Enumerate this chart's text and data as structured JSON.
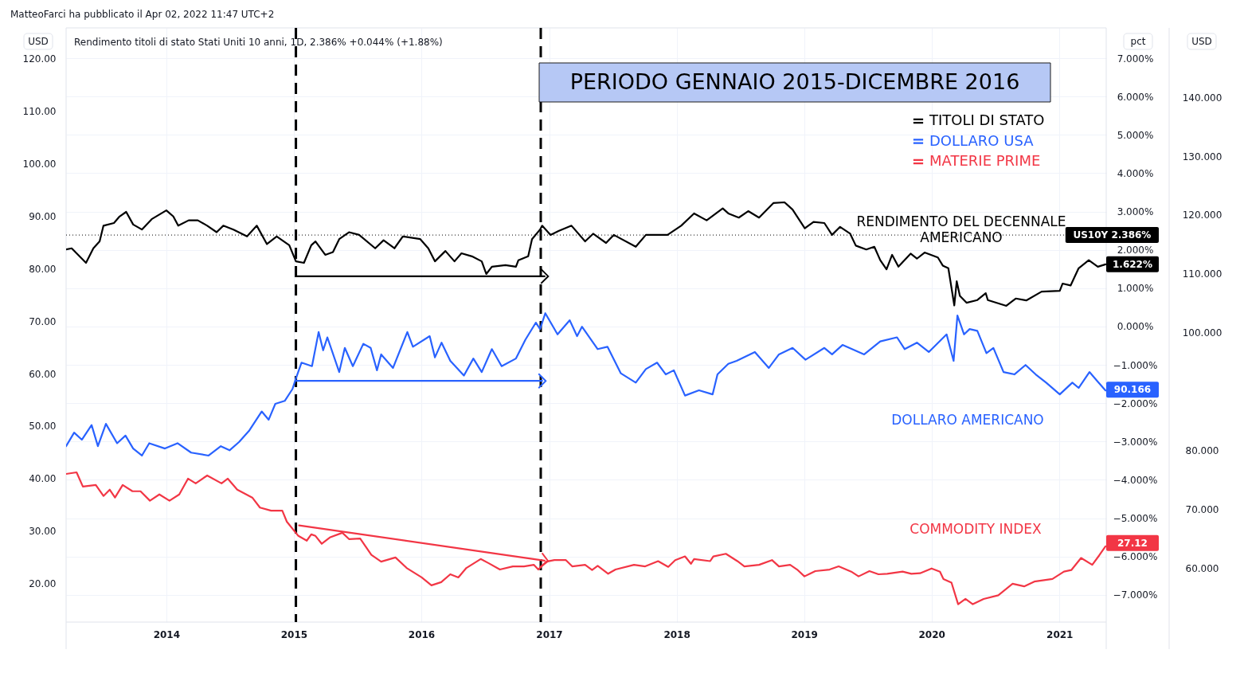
{
  "chart_data": {
    "type": "line",
    "title": "PERIODO GENNAIO 2015-DICEMBRE 2016",
    "subtitle": "Rendimento titoli di stato Stati Uniti 10 anni, 1D, 2.386% +0.044% (+1.88%)",
    "ylabel": "USD",
    "y2label": "pct",
    "y3label": "USD",
    "xlim": [
      "2013-03-20",
      "2021-05-15"
    ],
    "xticks": [
      "2014",
      "2015",
      "2016",
      "2017",
      "2018",
      "2019",
      "2020",
      "2021"
    ],
    "ylim": [
      12.7,
      125.8
    ],
    "yticks": [
      {
        "value": 120,
        "label": "120.00"
      },
      {
        "value": 110,
        "label": "110.00"
      },
      {
        "value": 100,
        "label": "100.00"
      },
      {
        "value": 90,
        "label": "90.00"
      },
      {
        "value": 80,
        "label": "80.00"
      },
      {
        "value": 70,
        "label": "70.00"
      },
      {
        "value": 60,
        "label": "60.00"
      },
      {
        "value": 50,
        "label": "50.00"
      },
      {
        "value": 40,
        "label": "40.00"
      },
      {
        "value": 30,
        "label": "30.00"
      },
      {
        "value": 20,
        "label": "20.00"
      }
    ],
    "y2lim": [
      -7.71,
      7.79
    ],
    "y2ticks": [
      {
        "value": 7,
        "label": "7.000%"
      },
      {
        "value": 6,
        "label": "6.000%"
      },
      {
        "value": 5,
        "label": "5.000%"
      },
      {
        "value": 4,
        "label": "4.000%"
      },
      {
        "value": 3,
        "label": "3.000%"
      },
      {
        "value": 2,
        "label": "2.000%"
      },
      {
        "value": 1,
        "label": "1.000%"
      },
      {
        "value": 0,
        "label": "0.000%"
      },
      {
        "value": -1,
        "label": "−1.000%"
      },
      {
        "value": -2,
        "label": "−2.000%"
      },
      {
        "value": -3,
        "label": "−3.000%"
      },
      {
        "value": -4,
        "label": "−4.000%"
      },
      {
        "value": -5,
        "label": "−5.000%"
      },
      {
        "value": -6,
        "label": "−6.000%"
      },
      {
        "value": -7,
        "label": "−7.000%"
      }
    ],
    "y3lim": [
      50.8,
      151.8
    ],
    "y3ticks": [
      {
        "value": 140,
        "label": "140.000"
      },
      {
        "value": 130,
        "label": "130.000"
      },
      {
        "value": 120,
        "label": "120.000"
      },
      {
        "value": 110,
        "label": "110.000"
      },
      {
        "value": 100,
        "label": "100.000"
      },
      {
        "value": 80,
        "label": "80.000"
      },
      {
        "value": 70,
        "label": "70.000"
      },
      {
        "value": 60,
        "label": "60.000"
      }
    ],
    "grid": true,
    "legend": "top right",
    "series": [
      {
        "name": "TITOLI DI STATO",
        "color": "#000000",
        "axis": "y2",
        "x": [
          "2013-03-20",
          "2013-04-05",
          "2013-05-16",
          "2013-06-06",
          "2013-06-24",
          "2013-07-05",
          "2013-08-04",
          "2013-08-20",
          "2013-09-08",
          "2013-09-28",
          "2013-10-23",
          "2013-11-20",
          "2014-01-01",
          "2014-01-21",
          "2014-02-04",
          "2014-03-06",
          "2014-04-01",
          "2014-04-28",
          "2014-05-25",
          "2014-06-13",
          "2014-07-12",
          "2014-08-20",
          "2014-09-17",
          "2014-10-16",
          "2014-11-13",
          "2014-12-19",
          "2015-01-07",
          "2015-01-30",
          "2015-02-20",
          "2015-03-04",
          "2015-04-01",
          "2015-04-23",
          "2015-05-11",
          "2015-06-08",
          "2015-07-07",
          "2015-08-22",
          "2015-09-15",
          "2015-10-16",
          "2015-11-09",
          "2015-12-29",
          "2016-01-21",
          "2016-02-09",
          "2016-03-10",
          "2016-04-05",
          "2016-04-25",
          "2016-05-25",
          "2016-06-22",
          "2016-07-05",
          "2016-07-21",
          "2016-08-29",
          "2016-09-28",
          "2016-10-05",
          "2016-11-02",
          "2016-11-13",
          "2016-12-06",
          "2016-12-12",
          "2017-01-05",
          "2017-01-28",
          "2017-03-06",
          "2017-04-14",
          "2017-05-07",
          "2017-06-13",
          "2017-07-05",
          "2017-09-06",
          "2017-10-05",
          "2017-12-06",
          "2018-01-14",
          "2018-02-20",
          "2018-03-28",
          "2018-05-13",
          "2018-05-29",
          "2018-06-28",
          "2018-07-25",
          "2018-08-25",
          "2018-10-05",
          "2018-11-06",
          "2018-11-29",
          "2019-01-03",
          "2019-01-28",
          "2019-02-28",
          "2019-03-22",
          "2019-04-14",
          "2019-05-13",
          "2019-05-29",
          "2019-06-28",
          "2019-07-21",
          "2019-08-07",
          "2019-08-25",
          "2019-09-10",
          "2019-09-28",
          "2019-11-02",
          "2019-11-20",
          "2019-12-12",
          "2020-01-19",
          "2020-02-02",
          "2020-02-18",
          "2020-03-06",
          "2020-03-13",
          "2020-03-22",
          "2020-04-10",
          "2020-05-11",
          "2020-06-04",
          "2020-06-10",
          "2020-08-02",
          "2020-08-29",
          "2020-09-28",
          "2020-11-11",
          "2021-01-02",
          "2021-01-10",
          "2021-02-02",
          "2021-02-25",
          "2021-03-26",
          "2021-04-21",
          "2021-05-13"
        ],
        "values": [
          2.01,
          2.04,
          1.66,
          2.04,
          2.22,
          2.63,
          2.7,
          2.87,
          2.99,
          2.66,
          2.53,
          2.8,
          3.03,
          2.87,
          2.63,
          2.77,
          2.77,
          2.63,
          2.46,
          2.63,
          2.53,
          2.35,
          2.63,
          2.15,
          2.35,
          2.12,
          1.7,
          1.66,
          2.12,
          2.22,
          1.87,
          1.94,
          2.28,
          2.46,
          2.39,
          2.04,
          2.25,
          2.04,
          2.35,
          2.28,
          2.04,
          1.7,
          1.97,
          1.7,
          1.91,
          1.83,
          1.7,
          1.37,
          1.56,
          1.6,
          1.56,
          1.73,
          1.83,
          2.28,
          2.53,
          2.63,
          2.39,
          2.49,
          2.63,
          2.22,
          2.42,
          2.18,
          2.39,
          2.08,
          2.39,
          2.39,
          2.63,
          2.95,
          2.77,
          3.08,
          2.95,
          2.84,
          3.01,
          2.84,
          3.22,
          3.24,
          3.05,
          2.56,
          2.73,
          2.7,
          2.39,
          2.6,
          2.42,
          2.11,
          2.01,
          2.08,
          1.73,
          1.49,
          1.87,
          1.56,
          1.9,
          1.77,
          1.93,
          1.8,
          1.59,
          1.52,
          0.55,
          1.18,
          0.8,
          0.62,
          0.69,
          0.87,
          0.69,
          0.54,
          0.73,
          0.68,
          0.91,
          0.93,
          1.12,
          1.07,
          1.52,
          1.73,
          1.56,
          1.622
        ],
        "value_labels": [
          null,
          null,
          null,
          null,
          null,
          null,
          null,
          null,
          null,
          null,
          null,
          null,
          null,
          null,
          null,
          null,
          null,
          null,
          null,
          null,
          null,
          null,
          null,
          null,
          null,
          null,
          null,
          null,
          null,
          null,
          null,
          null,
          null,
          null,
          null,
          null,
          null,
          null,
          null,
          null,
          null,
          null,
          null,
          null,
          null,
          null,
          null,
          null,
          null,
          null,
          null,
          null,
          null,
          null,
          null,
          null,
          null,
          null,
          null,
          null,
          null,
          null,
          null,
          null,
          null,
          null,
          null,
          null,
          null,
          null,
          null,
          null,
          null,
          null,
          null,
          null,
          null,
          null,
          null,
          null,
          null,
          null,
          null,
          null,
          null,
          null,
          null,
          null,
          null,
          null,
          null,
          null,
          null,
          null,
          null,
          null,
          null,
          null,
          null,
          null,
          null,
          null,
          null,
          null,
          null,
          null,
          null,
          null,
          null,
          null,
          null,
          null,
          null,
          "1.622%"
        ]
      },
      {
        "name": "DOLLARO USA",
        "color": "#2962ff",
        "axis": "y3",
        "x": [
          "2013-03-20",
          "2013-04-12",
          "2013-05-04",
          "2013-06-01",
          "2013-06-19",
          "2013-07-12",
          "2013-08-13",
          "2013-09-06",
          "2013-09-28",
          "2013-10-23",
          "2013-11-13",
          "2013-12-28",
          "2014-02-02",
          "2014-03-13",
          "2014-05-02",
          "2014-06-06",
          "2014-07-01",
          "2014-07-28",
          "2014-08-27",
          "2014-10-01",
          "2014-10-21",
          "2014-11-09",
          "2014-12-06",
          "2014-12-28",
          "2015-01-07",
          "2015-01-23",
          "2015-02-22",
          "2015-03-13",
          "2015-03-26",
          "2015-04-07",
          "2015-05-11",
          "2015-05-27",
          "2015-06-19",
          "2015-07-19",
          "2015-08-09",
          "2015-08-27",
          "2015-09-08",
          "2015-10-12",
          "2015-11-22",
          "2015-12-08",
          "2016-01-25",
          "2016-02-09",
          "2016-02-28",
          "2016-03-24",
          "2016-05-02",
          "2016-05-29",
          "2016-06-22",
          "2016-07-21",
          "2016-08-18",
          "2016-09-28",
          "2016-10-25",
          "2016-11-24",
          "2016-12-06",
          "2016-12-21",
          "2017-01-25",
          "2017-03-01",
          "2017-03-22",
          "2017-04-05",
          "2017-05-20",
          "2017-06-17",
          "2017-07-25",
          "2017-09-06",
          "2017-10-05",
          "2017-11-06",
          "2017-12-01",
          "2017-12-24",
          "2018-01-25",
          "2018-03-06",
          "2018-04-14",
          "2018-04-28",
          "2018-05-29",
          "2018-06-22",
          "2018-08-13",
          "2018-09-22",
          "2018-10-21",
          "2018-11-29",
          "2019-01-05",
          "2019-02-28",
          "2019-03-22",
          "2019-04-21",
          "2019-06-22",
          "2019-08-07",
          "2019-09-24",
          "2019-10-16",
          "2019-11-20",
          "2019-12-24",
          "2020-02-13",
          "2020-03-04",
          "2020-03-15",
          "2020-04-03",
          "2020-04-19",
          "2020-05-11",
          "2020-06-06",
          "2020-06-26",
          "2020-07-25",
          "2020-08-25",
          "2020-09-26",
          "2020-10-25",
          "2020-11-24",
          "2021-01-02",
          "2021-02-07",
          "2021-02-25",
          "2021-03-28",
          "2021-04-19",
          "2021-05-13"
        ],
        "values": [
          80.7,
          83.0,
          81.8,
          84.3,
          80.7,
          84.5,
          81.2,
          82.5,
          80.3,
          79.1,
          81.2,
          80.3,
          81.2,
          79.6,
          79.1,
          80.7,
          80.0,
          81.4,
          83.4,
          86.6,
          85.2,
          87.9,
          88.4,
          90.4,
          92.2,
          94.9,
          94.3,
          100.1,
          97.0,
          99.2,
          93.3,
          97.4,
          94.3,
          98.1,
          97.4,
          93.6,
          96.3,
          94.0,
          100.1,
          97.6,
          99.4,
          95.8,
          98.3,
          95.2,
          92.7,
          95.6,
          93.3,
          97.2,
          94.3,
          95.6,
          98.8,
          101.7,
          100.6,
          103.3,
          99.7,
          102.1,
          99.4,
          101.0,
          97.2,
          97.6,
          93.1,
          91.5,
          93.8,
          94.9,
          92.9,
          93.6,
          89.3,
          90.2,
          89.5,
          92.9,
          94.7,
          95.2,
          96.7,
          94.0,
          96.3,
          97.4,
          95.4,
          97.4,
          96.3,
          97.9,
          96.3,
          98.5,
          99.2,
          97.2,
          98.3,
          96.7,
          99.7,
          95.2,
          102.9,
          99.7,
          100.6,
          100.3,
          96.5,
          97.4,
          93.3,
          92.9,
          94.5,
          92.9,
          91.5,
          89.5,
          91.5,
          90.6,
          93.3,
          91.8,
          90.166
        ],
        "value_labels": [
          null,
          null,
          null,
          null,
          null,
          null,
          null,
          null,
          null,
          null,
          null,
          null,
          null,
          null,
          null,
          null,
          null,
          null,
          null,
          null,
          null,
          null,
          null,
          null,
          null,
          null,
          null,
          null,
          null,
          null,
          null,
          null,
          null,
          null,
          null,
          null,
          null,
          null,
          null,
          null,
          null,
          null,
          null,
          null,
          null,
          null,
          null,
          null,
          null,
          null,
          null,
          null,
          null,
          null,
          null,
          null,
          null,
          null,
          null,
          null,
          null,
          null,
          null,
          null,
          null,
          null,
          null,
          null,
          null,
          null,
          null,
          null,
          null,
          null,
          null,
          null,
          null,
          null,
          null,
          null,
          null,
          null,
          null,
          null,
          null,
          null,
          null,
          null,
          null,
          null,
          null,
          null,
          null,
          null,
          null,
          null,
          null,
          null,
          null,
          null,
          null,
          null,
          null,
          null,
          "90.166"
        ]
      },
      {
        "name": "MATERIE PRIME",
        "color": "#f23645",
        "x": [
          "2013-03-20",
          "2013-04-19",
          "2013-05-07",
          "2013-06-13",
          "2013-07-05",
          "2013-07-23",
          "2013-08-07",
          "2013-08-29",
          "2013-09-26",
          "2013-10-19",
          "2013-11-15",
          "2013-12-12",
          "2014-01-10",
          "2014-02-07",
          "2014-03-04",
          "2014-03-26",
          "2014-04-28",
          "2014-06-08",
          "2014-06-26",
          "2014-07-23",
          "2014-09-04",
          "2014-09-26",
          "2014-10-28",
          "2014-11-29",
          "2014-12-12",
          "2015-01-14",
          "2015-02-07",
          "2015-02-20",
          "2015-03-04",
          "2015-03-22",
          "2015-04-14",
          "2015-05-20",
          "2015-06-08",
          "2015-07-10",
          "2015-08-11",
          "2015-09-08",
          "2015-10-19",
          "2015-11-20",
          "2016-01-02",
          "2016-01-30",
          "2016-02-27",
          "2016-03-24",
          "2016-04-16",
          "2016-05-09",
          "2016-06-19",
          "2016-07-12",
          "2016-08-13",
          "2016-09-19",
          "2016-10-21",
          "2016-11-18",
          "2016-12-01",
          "2016-12-24",
          "2017-01-16",
          "2017-02-18",
          "2017-03-08",
          "2017-04-14",
          "2017-05-04",
          "2017-05-20",
          "2017-06-19",
          "2017-07-10",
          "2017-09-01",
          "2017-10-03",
          "2017-11-09",
          "2017-12-08",
          "2017-12-28",
          "2018-01-25",
          "2018-02-11",
          "2018-02-20",
          "2018-04-07",
          "2018-04-16",
          "2018-05-22",
          "2018-06-24",
          "2018-07-14",
          "2018-08-25",
          "2018-10-01",
          "2018-10-21",
          "2018-11-22",
          "2018-12-12",
          "2019-01-02",
          "2019-02-02",
          "2019-03-15",
          "2019-04-10",
          "2019-05-16",
          "2019-06-06",
          "2019-07-07",
          "2019-08-02",
          "2019-08-27",
          "2019-10-10",
          "2019-11-04",
          "2019-11-29",
          "2020-01-01",
          "2020-01-25",
          "2020-02-04",
          "2020-02-27",
          "2020-03-17",
          "2020-04-07",
          "2020-04-28",
          "2020-05-29",
          "2020-07-10",
          "2020-08-20",
          "2020-09-22",
          "2020-10-21",
          "2020-12-12",
          "2021-01-14",
          "2021-02-04",
          "2021-03-04",
          "2021-04-05",
          "2021-04-25",
          "2021-05-13"
        ],
        "values": [
          40.9,
          41.2,
          38.5,
          38.8,
          36.7,
          37.9,
          36.4,
          38.8,
          37.6,
          37.6,
          35.8,
          37.0,
          35.8,
          37.0,
          40.0,
          39.1,
          40.6,
          39.1,
          40.0,
          37.9,
          36.4,
          34.5,
          33.9,
          33.9,
          31.8,
          29.1,
          28.2,
          29.4,
          29.1,
          27.6,
          28.8,
          29.7,
          28.5,
          28.6,
          25.5,
          24.2,
          25.0,
          23.0,
          21.2,
          19.7,
          20.3,
          21.8,
          21.2,
          23.0,
          24.7,
          23.9,
          22.7,
          23.3,
          23.3,
          23.6,
          22.7,
          24.2,
          24.5,
          24.5,
          23.3,
          23.6,
          22.6,
          23.4,
          21.9,
          22.7,
          23.6,
          23.3,
          24.3,
          23.2,
          24.5,
          25.2,
          23.8,
          24.7,
          24.3,
          25.2,
          25.7,
          24.3,
          23.3,
          23.6,
          24.5,
          23.3,
          23.6,
          22.7,
          21.4,
          22.4,
          22.7,
          23.3,
          22.3,
          21.4,
          22.4,
          21.8,
          21.9,
          22.3,
          21.9,
          22.0,
          22.9,
          22.3,
          20.9,
          20.2,
          16.1,
          17.1,
          16.1,
          17.1,
          17.8,
          20.0,
          19.5,
          20.4,
          20.9,
          22.3,
          22.6,
          24.9,
          23.6,
          25.4,
          27.12
        ],
        "value_labels": [
          null,
          null,
          null,
          null,
          null,
          null,
          null,
          null,
          null,
          null,
          null,
          null,
          null,
          null,
          null,
          null,
          null,
          null,
          null,
          null,
          null,
          null,
          null,
          null,
          null,
          null,
          null,
          null,
          null,
          null,
          null,
          null,
          null,
          null,
          null,
          null,
          null,
          null,
          null,
          null,
          null,
          null,
          null,
          null,
          null,
          null,
          null,
          null,
          null,
          null,
          null,
          null,
          null,
          null,
          null,
          null,
          null,
          null,
          null,
          null,
          null,
          null,
          null,
          null,
          null,
          null,
          null,
          null,
          null,
          null,
          null,
          null,
          null,
          null,
          null,
          null,
          null,
          null,
          null,
          null,
          null,
          null,
          null,
          null,
          null,
          null,
          null,
          null,
          null,
          null,
          null,
          null,
          null,
          null,
          null,
          null,
          null,
          null,
          null,
          null,
          null,
          null,
          null,
          null,
          null,
          null,
          null,
          null,
          "27.12"
        ]
      },
      {
        "type": "line",
        "color": "#000000",
        "axis": "y2",
        "x": [
          "2015-01-07",
          "2016-12-19"
        ],
        "values": [
          1.31,
          1.31
        ]
      },
      {
        "type": "line",
        "color": "#2962ff",
        "axis": "y3",
        "x": [
          "2015-01-07",
          "2016-12-12"
        ],
        "values": [
          91.8,
          91.8
        ]
      },
      {
        "type": "line",
        "color": "#f23645",
        "x": [
          "2015-01-16",
          "2016-12-19"
        ],
        "values": [
          31.1,
          24.4
        ]
      }
    ],
    "ref_lines": [
      {
        "axis": "x",
        "value": "2015-01-07",
        "color": "#000000",
        "line_style": "dashed"
      },
      {
        "axis": "x",
        "value": "2016-12-08",
        "color": "#000000",
        "line_style": "dashed"
      },
      {
        "axis": "y2",
        "value": 2.386,
        "label": "US10Y 2.386%",
        "color": "#000000",
        "line_style": "dotted"
      }
    ],
    "annotations": [
      "MatteoFarci ha pubblicato il Apr 02, 2022 11:47 UTC+2",
      "RENDIMENTO DEL DECENNALE AMERICANO",
      "DOLLARO AMERICANO",
      "COMMODITY INDEX"
    ]
  }
}
